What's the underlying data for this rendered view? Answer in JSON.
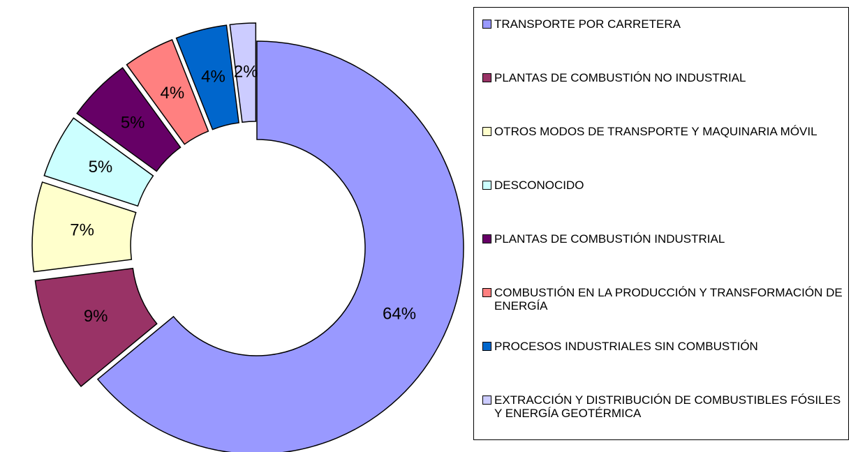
{
  "chart_data": {
    "type": "donut",
    "categories": [
      "TRANSPORTE POR CARRETERA",
      "PLANTAS DE COMBUSTIÓN NO INDUSTRIAL",
      "OTROS MODOS DE TRANSPORTE Y MAQUINARIA MÓVIL",
      "DESCONOCIDO",
      "PLANTAS DE COMBUSTIÓN INDUSTRIAL",
      "COMBUSTIÓN EN LA PRODUCCIÓN Y TRANSFORMACIÓN DE ENERGÍA",
      "PROCESOS INDUSTRIALES SIN COMBUSTIÓN",
      "EXTRACCIÓN Y DISTRIBUCIÓN DE COMBUSTIBLES FÓSILES Y ENERGÍA GEOTÉRMICA"
    ],
    "values": [
      64,
      9,
      7,
      5,
      5,
      4,
      4,
      2
    ],
    "value_labels": [
      "64%",
      "9%",
      "7%",
      "5%",
      "5%",
      "4%",
      "4%",
      "2%"
    ],
    "colors": [
      "#9999ff",
      "#993366",
      "#ffffcc",
      "#ccffff",
      "#660066",
      "#ff8080",
      "#0066cc",
      "#ccccff"
    ],
    "legend": "right"
  }
}
